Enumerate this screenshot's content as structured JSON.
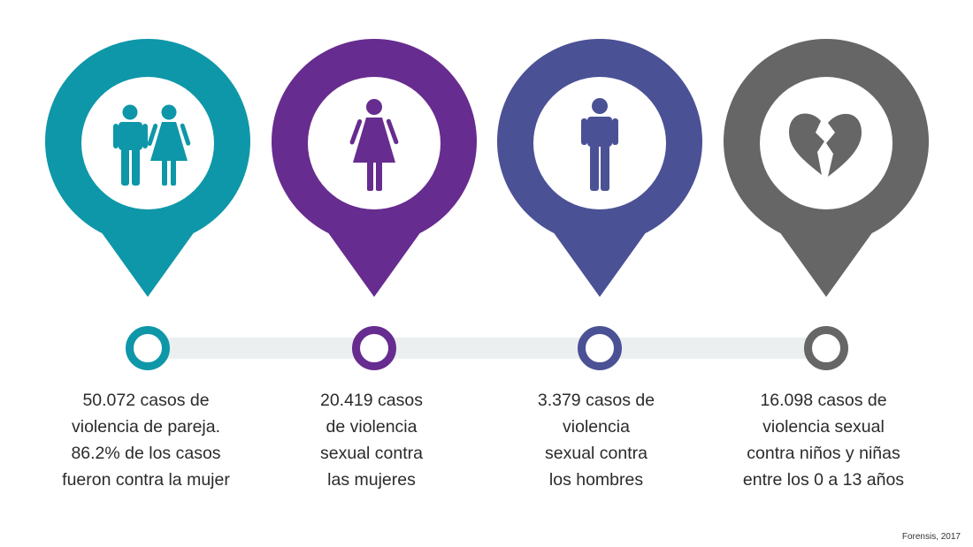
{
  "colors": {
    "teal": "#0e97a8",
    "purple": "#672c8f",
    "indigo": "#4a5195",
    "gray": "#666666",
    "track": "#eceff0"
  },
  "items": [
    {
      "icon": "couple-icon",
      "color": "#0e97a8",
      "caption": "50.072 casos de\nviolencia de pareja.\n86.2% de los casos\nfueron contra la mujer"
    },
    {
      "icon": "woman-icon",
      "color": "#672c8f",
      "caption": "20.419 casos\nde violencia\nsexual contra\nlas mujeres"
    },
    {
      "icon": "man-icon",
      "color": "#4a5195",
      "caption": "3.379 casos de\nviolencia\nsexual contra\nlos hombres"
    },
    {
      "icon": "broken-heart-icon",
      "color": "#666666",
      "caption": "16.098 casos de\nviolencia sexual\ncontra niños y niñas\nentre los 0 a 13 años"
    }
  ],
  "source": "Forensis, 2017"
}
